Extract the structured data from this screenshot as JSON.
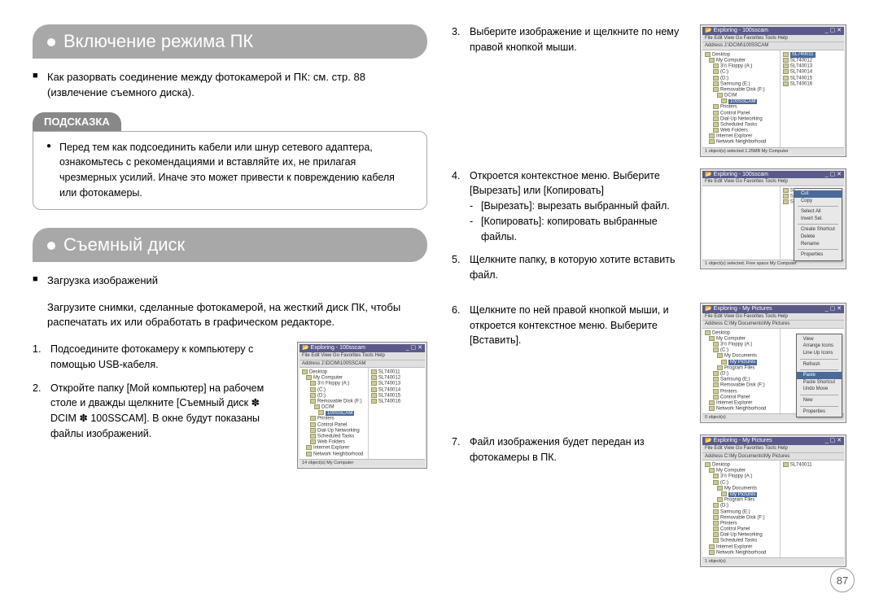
{
  "page_number": "87",
  "left": {
    "header1": "Включение режима ПК",
    "para1": "Как разорвать соединение между фотокамерой и ПК: см. стр. 88 (извлечение съемного диска).",
    "hint": {
      "title": "ПОДСКАЗКА",
      "body": "Перед тем как подсоединить кабели или шнур сетевого адаптера, ознакомьтесь с рекомендациями и вставляйте их, не прилагая чрезмерных усилий. Иначе это может привести к повреждению кабеля или фотокамеры."
    },
    "header2": "Съемный диск",
    "bullet2": "Загрузка изображений",
    "para2": "Загрузите снимки, сделанные фотокамерой, на жесткий диск ПК, чтобы распечатать их или обработать в графическом редакторе.",
    "step1_num": "1.",
    "step1": "Подсоедините фотокамеру к компьютеру с помощью USB-кабеля.",
    "step2_num": "2.",
    "step2": "Откройте папку [Мой компьютер] на рабочем столе и дважды щелкните [Съемный диск ✽ DCIM ✽ 100SSCAM]. В окне будут показаны файлы изображений.",
    "ss_left": {
      "title": "Exploring - 100sscam",
      "menu": "File  Edit  View  Go  Favorites  Tools  Help",
      "addr": "Address  J:\\DCIM\\100SSCAM",
      "tree": [
        "Desktop",
        " My Computer",
        "  3½ Floppy (A:)",
        "  (C:)",
        "  (D:)",
        "  Removable Disk (F:)",
        "   DCIM",
        "    100SSCAM",
        "  Printers",
        "  Control Panel",
        "  Dial-Up Networking",
        "  Scheduled Tasks",
        "  Web Folders",
        " Internet Explorer",
        " Network Neighborhood"
      ],
      "tree_sel_idx": 7,
      "files": [
        "SL740011",
        "SL740012",
        "SL740013",
        "SL740014",
        "SL740015",
        "SL740016"
      ],
      "status": "14 object(s)          My Computer"
    }
  },
  "right": {
    "step3_num": "3.",
    "step3": "Выберите изображение и щелкните по нему правой кнопкой мыши.",
    "ss3": {
      "title": "Exploring - 100sscam",
      "menu": "File  Edit  View  Go  Favorites  Tools  Help",
      "addr": "Address  J:\\DCIM\\100SSCAM",
      "tree": [
        "Desktop",
        " My Computer",
        "  3½ Floppy (A:)",
        "  (C:)",
        "  (D:)",
        "  Samsung (E:)",
        "  Removable Disk (F:)",
        "   DCIM",
        "    100SSCAM",
        "  Printers",
        "  Control Panel",
        "  Dial-Up Networking",
        "  Scheduled Tasks",
        "  Web Folders",
        " Internet Explorer",
        " Network Neighborhood"
      ],
      "tree_sel_idx": 8,
      "files": [
        "SL740011",
        "SL740012",
        "SL740013",
        "SL740014",
        "SL740015",
        "SL740016"
      ],
      "file_sel_idx": 0,
      "status": "1 object(s) selected     1.25MB   My Computer"
    },
    "step4_num": "4.",
    "step4": "Откроется контекстное меню. Выберите [Вырезать] или [Копировать]",
    "step4_sub1": "[Вырезать]: вырезать выбранный файл.",
    "step4_sub2": "[Копировать]: копировать выбранные файлы.",
    "step5_num": "5.",
    "step5": "Щелкните папку, в которую хотите вставить файл.",
    "ss4": {
      "title": "Exploring - 100sscam",
      "menu": "File  Edit  View  Go  Favorites  Tools  Help",
      "files_short": [
        "SL7",
        "SL7",
        "SL7"
      ],
      "ctx": [
        "Select All",
        "Invert Sel.",
        "",
        "Create Shortcut",
        "Delete",
        "Rename",
        "",
        "Properties"
      ],
      "ctx_top": [
        "Cut",
        "Copy"
      ],
      "status": "1 object(s) selected. Free space My Computer"
    },
    "step6_num": "6.",
    "step6": "Щелкните по ней правой кнопкой мыши, и откроется контекстное меню. Выберите [Вставить].",
    "ss6": {
      "title": "Exploring - My Pictures",
      "menu": "File  Edit  View  Go  Favorites  Tools  Help",
      "addr": "Address  C:\\My Documents\\My Pictures",
      "tree": [
        "Desktop",
        " My Computer",
        "  3½ Floppy (A:)",
        "  (C:)",
        "   My Documents",
        "    My Pictures",
        "   Program Files",
        "  (D:)",
        "  Samsung (E:)",
        "  Removable Disk (F:)",
        "  Printers",
        "  Control Panel",
        " Internet Explorer",
        " Network Neighborhood"
      ],
      "tree_sel_idx": 5,
      "ctx_view": [
        "View",
        "Arrange Icons",
        "Line Up Icons",
        "",
        "Refresh",
        "",
        "Paste",
        "Paste Shortcut",
        "Undo Move",
        "",
        "New",
        "",
        "Properties"
      ],
      "ctx_sel_idx": 6,
      "status": "0 object(s)"
    },
    "step7_num": "7.",
    "step7": "Файл изображения будет передан из фотокамеры в ПК.",
    "ss7": {
      "title": "Exploring - My Pictures",
      "menu": "File  Edit  View  Go  Favorites  Tools  Help",
      "addr": "Address  C:\\My Documents\\My Pictures",
      "tree": [
        "Desktop",
        " My Computer",
        "  3½ Floppy (A:)",
        "  (C:)",
        "   My Documents",
        "    My Pictures",
        "   Program Files",
        "  (D:)",
        "  Samsung (E:)",
        "  Removable Disk (F:)",
        "  Printers",
        "  Control Panel",
        "  Dial-Up Networking",
        "  Scheduled Tasks",
        " Internet Explorer",
        " Network Neighborhood"
      ],
      "tree_sel_idx": 5,
      "files": [
        "SL740011"
      ],
      "status": "1 object(s)"
    }
  }
}
